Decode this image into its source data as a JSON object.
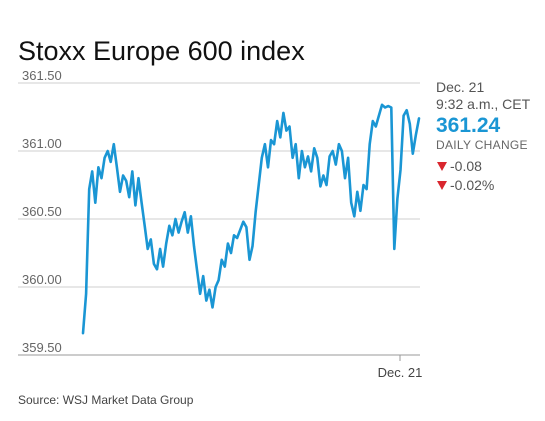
{
  "chart_data": {
    "type": "line",
    "title": "Stoxx Europe 600 index",
    "xlabel": "",
    "ylabel": "",
    "ylim": [
      359.5,
      361.5
    ],
    "yticks": [
      361.5,
      361.0,
      360.5,
      360.0,
      359.5
    ],
    "ytick_labels": [
      "361.50",
      "361.00",
      "360.50",
      "360.00",
      "359.50"
    ],
    "xtick_labels": [
      "Dec. 21"
    ],
    "grid": true,
    "series": [
      {
        "values": [
          359.66,
          359.95,
          360.72,
          360.85,
          360.62,
          360.88,
          360.8,
          360.95,
          361.0,
          360.92,
          361.05,
          360.88,
          360.7,
          360.82,
          360.78,
          360.66,
          360.85,
          360.6,
          360.8,
          360.62,
          360.45,
          360.28,
          360.35,
          360.17,
          360.13,
          360.28,
          360.15,
          360.32,
          360.45,
          360.38,
          360.5,
          360.4,
          360.48,
          360.55,
          360.4,
          360.52,
          360.3,
          360.12,
          359.95,
          360.08,
          359.9,
          359.98,
          359.85,
          360.0,
          360.05,
          360.2,
          360.15,
          360.32,
          360.25,
          360.38,
          360.36,
          360.42,
          360.48,
          360.44,
          360.2,
          360.3,
          360.55,
          360.75,
          360.95,
          361.05,
          360.88,
          361.08,
          361.05,
          361.22,
          361.1,
          361.28,
          361.15,
          361.18,
          360.95,
          361.05,
          360.8,
          361.0,
          360.88,
          360.96,
          360.85,
          361.02,
          360.95,
          360.74,
          360.82,
          360.75,
          360.96,
          361.0,
          360.9,
          361.05,
          361.0,
          360.8,
          360.95,
          360.62,
          360.52,
          360.7,
          360.56,
          360.75,
          360.72,
          361.05,
          361.22,
          361.18,
          361.26,
          361.34,
          361.32,
          361.33,
          361.32,
          360.28,
          360.65,
          360.86,
          361.26,
          361.3,
          361.2,
          360.98,
          361.12,
          361.24
        ],
        "color": "#1a96d4"
      }
    ]
  },
  "panel": {
    "date": "Dec. 21",
    "time": "9:32 a.m., CET",
    "value": "361.24",
    "change_label": "DAILY CHANGE",
    "change_abs": "-0.08",
    "change_pct": "-0.02%",
    "value_color": "#1a96d4",
    "down_color": "#d9262e"
  },
  "source": "Source: WSJ Market Data Group"
}
